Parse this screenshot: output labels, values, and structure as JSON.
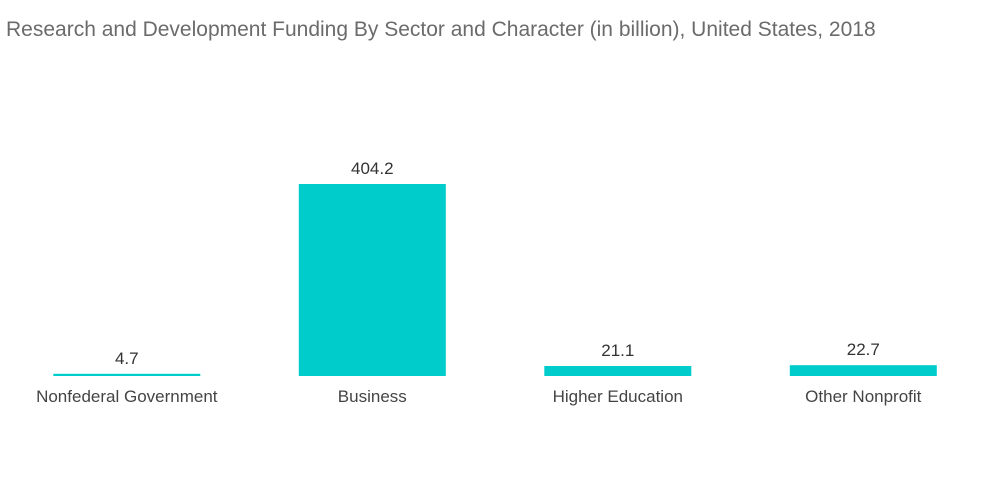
{
  "chart_data": {
    "type": "bar",
    "title": "Research and Development Funding By Sector and Character (in billion), United States, 2018",
    "categories": [
      "Nonfederal Government",
      "Business",
      "Higher Education",
      "Other Nonprofit"
    ],
    "values": [
      4.7,
      404.2,
      21.1,
      22.7
    ],
    "value_labels": [
      "4.7",
      "404.2",
      "21.1",
      "22.7"
    ],
    "xlabel": "",
    "ylabel": "",
    "ylim": [
      0,
      404.2
    ],
    "grid": false,
    "legend": "none",
    "bar_color": "#00cccc"
  }
}
